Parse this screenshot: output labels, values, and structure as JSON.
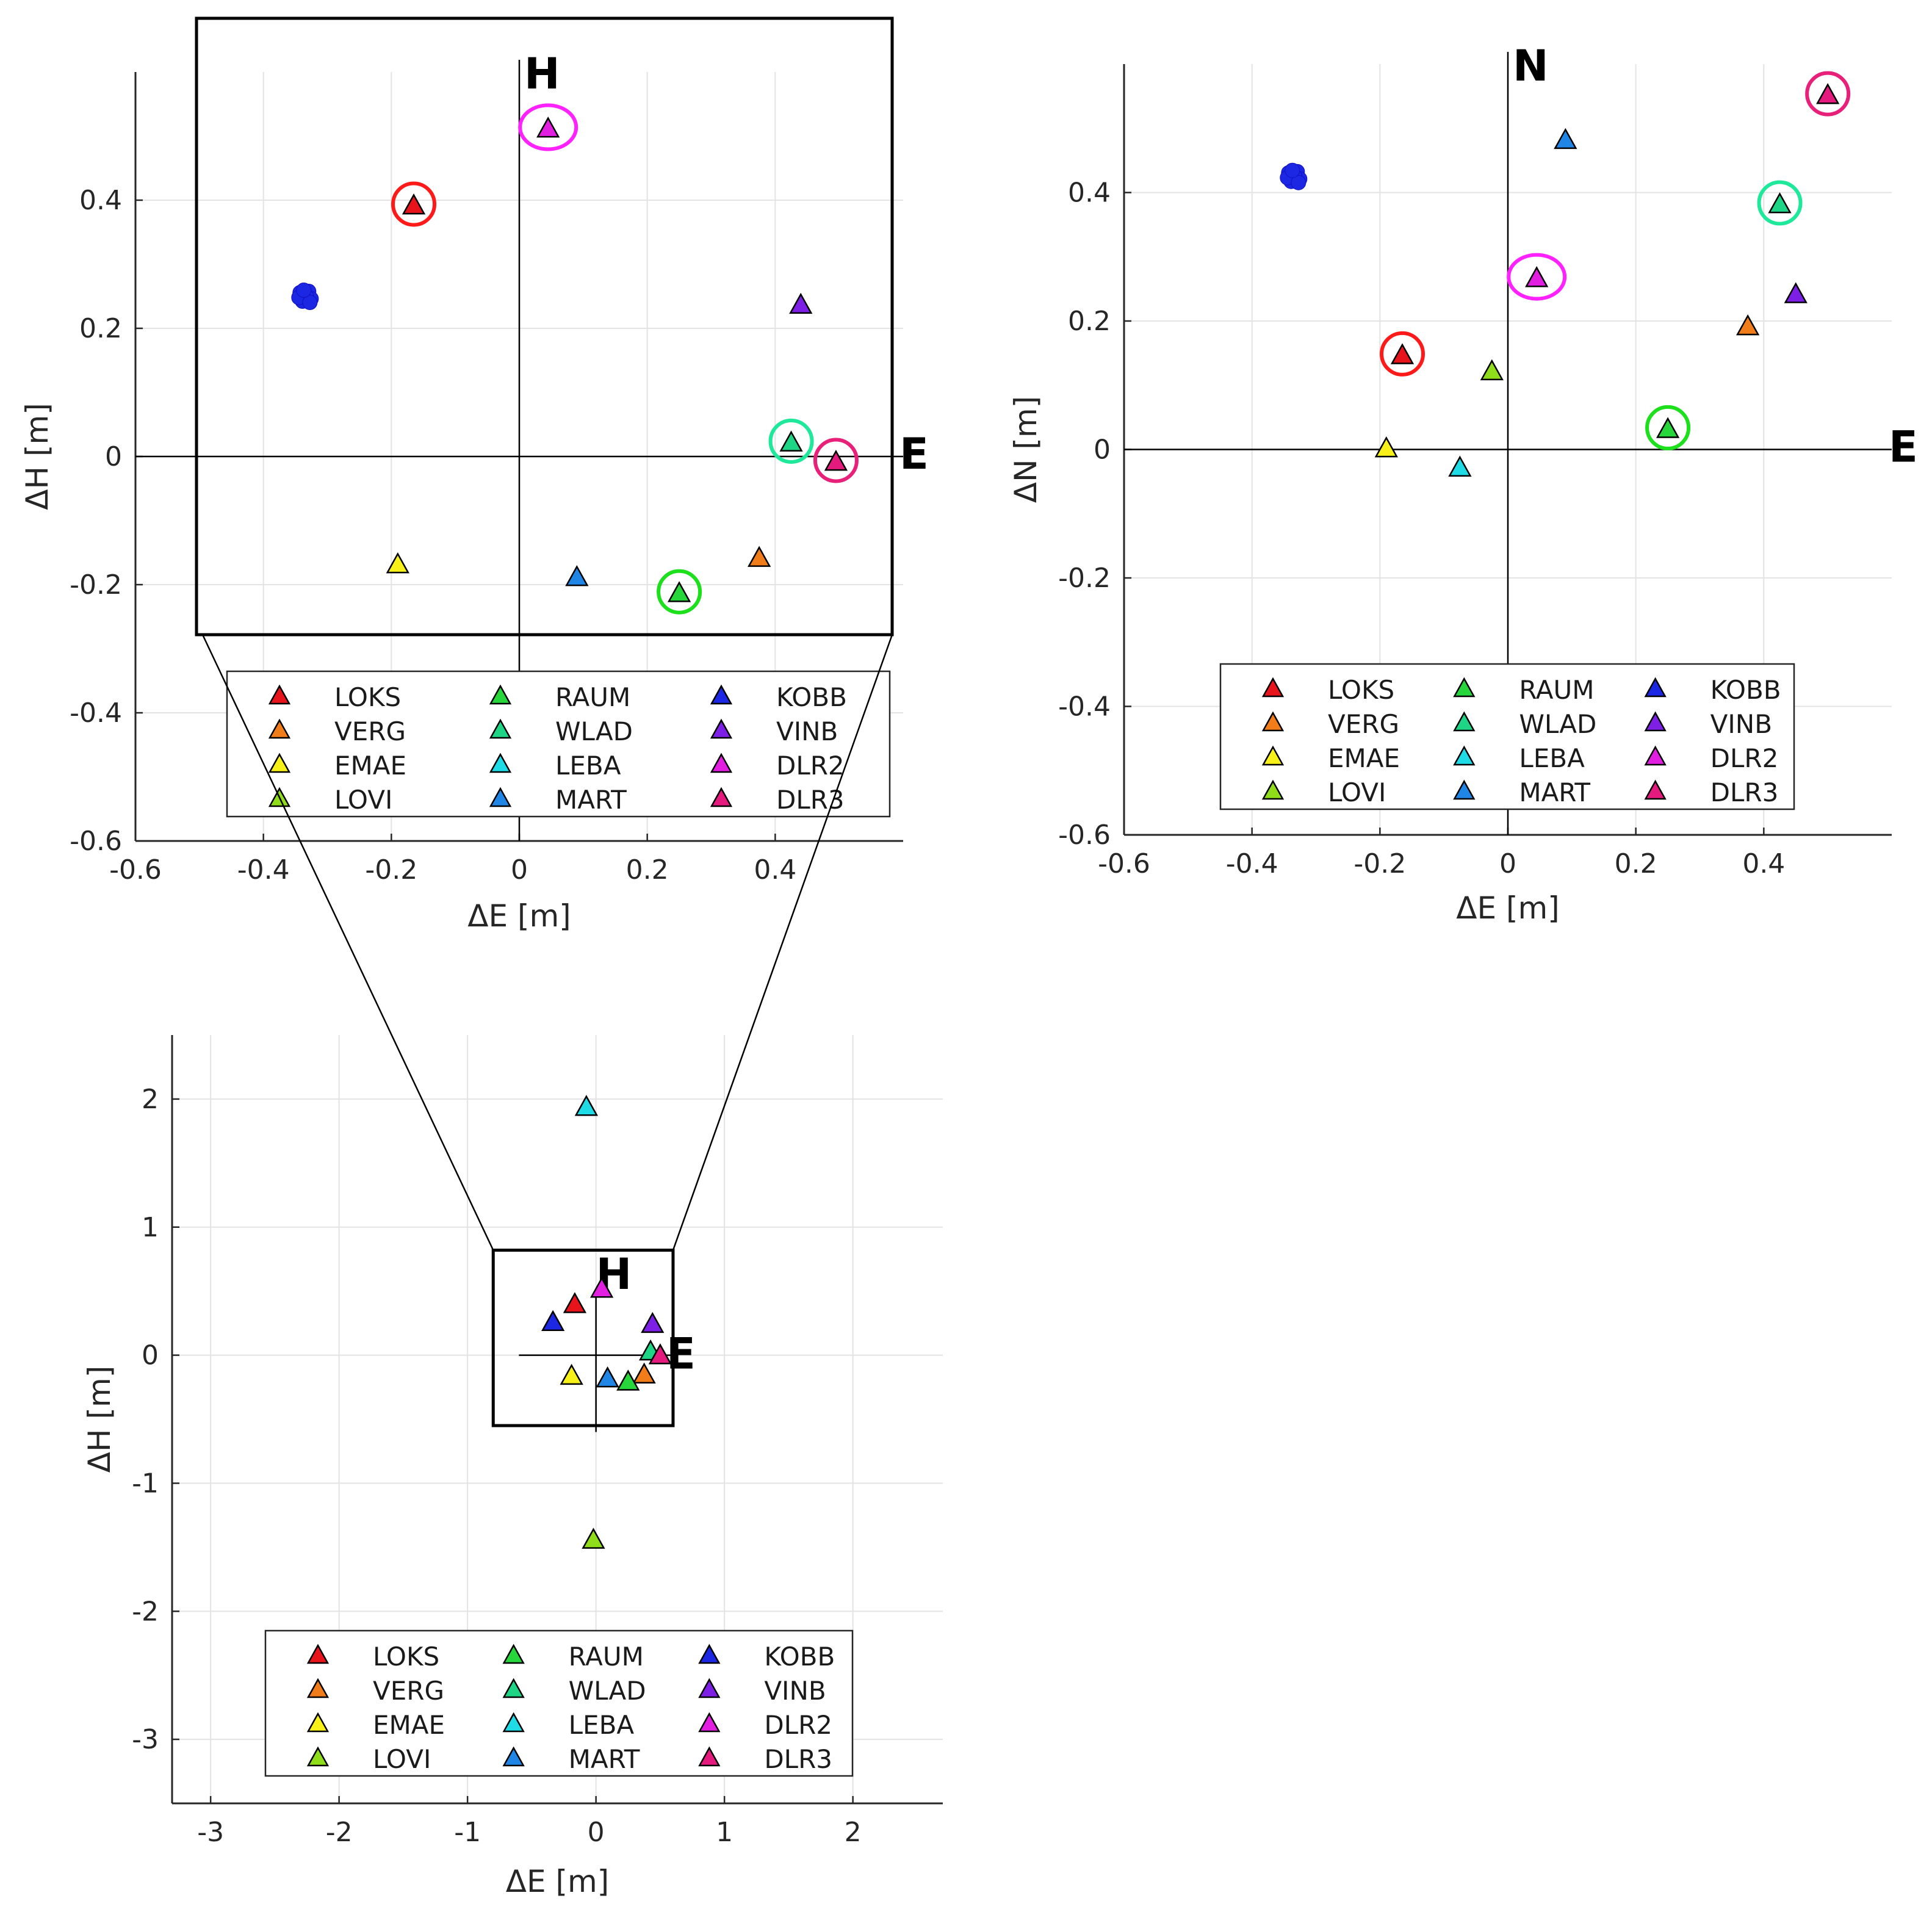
{
  "stations": [
    {
      "name": "LOKS",
      "color": "#e8141b"
    },
    {
      "name": "VERG",
      "color": "#f07d19"
    },
    {
      "name": "EMAE",
      "color": "#f8f019"
    },
    {
      "name": "LOVI",
      "color": "#8edc1a"
    },
    {
      "name": "RAUM",
      "color": "#27d63a"
    },
    {
      "name": "WLAD",
      "color": "#1ed586"
    },
    {
      "name": "LEBA",
      "color": "#1edbe6"
    },
    {
      "name": "MART",
      "color": "#1f86e6"
    },
    {
      "name": "KOBB",
      "color": "#1c27e4"
    },
    {
      "name": "VINB",
      "color": "#7d1fe4"
    },
    {
      "name": "DLR2",
      "color": "#e21fe0"
    },
    {
      "name": "DLR3",
      "color": "#e41a7e"
    }
  ],
  "chart_data": [
    {
      "id": "zoom-EH",
      "type": "scatter",
      "xlabel": "ΔE [m]",
      "ylabel": "ΔH [m]",
      "xlim": [
        -0.6,
        0.6
      ],
      "ylim": [
        -0.6,
        0.6
      ],
      "xticks": [
        -0.6,
        -0.4,
        -0.2,
        0,
        0.2,
        0.4
      ],
      "yticks": [
        -0.6,
        -0.4,
        -0.2,
        0,
        0.2,
        0.4
      ],
      "xticklabels": [
        "-0.6",
        "-0.4",
        "-0.2",
        "0",
        "0.2",
        "0.4"
      ],
      "yticklabels": [
        "-0.6",
        "-0.4",
        "-0.2",
        "0",
        "0.2",
        "0.4"
      ],
      "axis_label_vertical": "H",
      "axis_label_horizontal": "E",
      "grid": true,
      "legend_position": "lower-center",
      "points": [
        {
          "station": "LOKS",
          "x": -0.165,
          "y": 0.39,
          "circled": true
        },
        {
          "station": "VERG",
          "x": 0.375,
          "y": -0.16
        },
        {
          "station": "EMAE",
          "x": -0.19,
          "y": -0.17
        },
        {
          "station": "RAUM",
          "x": 0.25,
          "y": -0.215,
          "circled": true
        },
        {
          "station": "WLAD",
          "x": 0.425,
          "y": 0.02,
          "circled": true
        },
        {
          "station": "MART",
          "x": 0.09,
          "y": -0.19
        },
        {
          "station": "KOBB",
          "x": -0.335,
          "y": 0.25,
          "cluster": true
        },
        {
          "station": "VINB",
          "x": 0.44,
          "y": 0.235
        },
        {
          "station": "DLR2",
          "x": 0.045,
          "y": 0.51,
          "circled": true
        },
        {
          "station": "DLR3",
          "x": 0.495,
          "y": -0.01,
          "circled": true
        }
      ]
    },
    {
      "id": "EN",
      "type": "scatter",
      "xlabel": "ΔE [m]",
      "ylabel": "ΔN [m]",
      "xlim": [
        -0.6,
        0.6
      ],
      "ylim": [
        -0.6,
        0.6
      ],
      "xticks": [
        -0.6,
        -0.4,
        -0.2,
        0,
        0.2,
        0.4
      ],
      "yticks": [
        -0.6,
        -0.4,
        -0.2,
        0,
        0.2,
        0.4
      ],
      "xticklabels": [
        "-0.6",
        "-0.4",
        "-0.2",
        "0",
        "0.2",
        "0.4"
      ],
      "yticklabels": [
        "-0.6",
        "-0.4",
        "-0.2",
        "0",
        "0.2",
        "0.4"
      ],
      "axis_label_vertical": "N",
      "axis_label_horizontal": "E",
      "grid": true,
      "legend_position": "lower-center",
      "points": [
        {
          "station": "LOKS",
          "x": -0.165,
          "y": 0.145,
          "circled": true
        },
        {
          "station": "VERG",
          "x": 0.375,
          "y": 0.19
        },
        {
          "station": "EMAE",
          "x": -0.19,
          "y": 0.0
        },
        {
          "station": "LOVI",
          "x": -0.025,
          "y": 0.12
        },
        {
          "station": "RAUM",
          "x": 0.25,
          "y": 0.03,
          "circled": true
        },
        {
          "station": "WLAD",
          "x": 0.425,
          "y": 0.38,
          "circled": true
        },
        {
          "station": "LEBA",
          "x": -0.075,
          "y": -0.03
        },
        {
          "station": "MART",
          "x": 0.09,
          "y": 0.48
        },
        {
          "station": "KOBB",
          "x": -0.335,
          "y": 0.425,
          "cluster": true
        },
        {
          "station": "VINB",
          "x": 0.45,
          "y": 0.24
        },
        {
          "station": "DLR2",
          "x": 0.045,
          "y": 0.265,
          "circled": true
        },
        {
          "station": "DLR3",
          "x": 0.5,
          "y": 0.55,
          "circled": true
        }
      ]
    },
    {
      "id": "full-EH",
      "type": "scatter",
      "xlabel": "ΔE [m]",
      "ylabel": "ΔH [m]",
      "xlim": [
        -3.3,
        2.7
      ],
      "ylim": [
        -3.5,
        2.5
      ],
      "xticks": [
        -3,
        -2,
        -1,
        0,
        1,
        2
      ],
      "yticks": [
        -3,
        -2,
        -1,
        0,
        1,
        2
      ],
      "xticklabels": [
        "-3",
        "-2",
        "-1",
        "0",
        "1",
        "2"
      ],
      "yticklabels": [
        "-3",
        "-2",
        "-1",
        "0",
        "1",
        "2"
      ],
      "axis_label_vertical": "H",
      "axis_label_horizontal": "E",
      "grid": true,
      "legend_position": "lower-center",
      "zoom_box": {
        "x": [
          -0.8,
          0.6
        ],
        "y": [
          -0.55,
          0.82
        ]
      },
      "points": [
        {
          "station": "LOKS",
          "x": -0.165,
          "y": 0.39
        },
        {
          "station": "VERG",
          "x": 0.375,
          "y": -0.16
        },
        {
          "station": "EMAE",
          "x": -0.19,
          "y": -0.17
        },
        {
          "station": "LOVI",
          "x": -0.02,
          "y": -1.45
        },
        {
          "station": "RAUM",
          "x": 0.25,
          "y": -0.215
        },
        {
          "station": "WLAD",
          "x": 0.425,
          "y": 0.02
        },
        {
          "station": "LEBA",
          "x": -0.075,
          "y": 1.93
        },
        {
          "station": "MART",
          "x": 0.09,
          "y": -0.19
        },
        {
          "station": "KOBB",
          "x": -0.335,
          "y": 0.25
        },
        {
          "station": "VINB",
          "x": 0.44,
          "y": 0.235
        },
        {
          "station": "DLR2",
          "x": 0.045,
          "y": 0.51
        },
        {
          "station": "DLR3",
          "x": 0.5,
          "y": -0.01
        }
      ]
    }
  ]
}
